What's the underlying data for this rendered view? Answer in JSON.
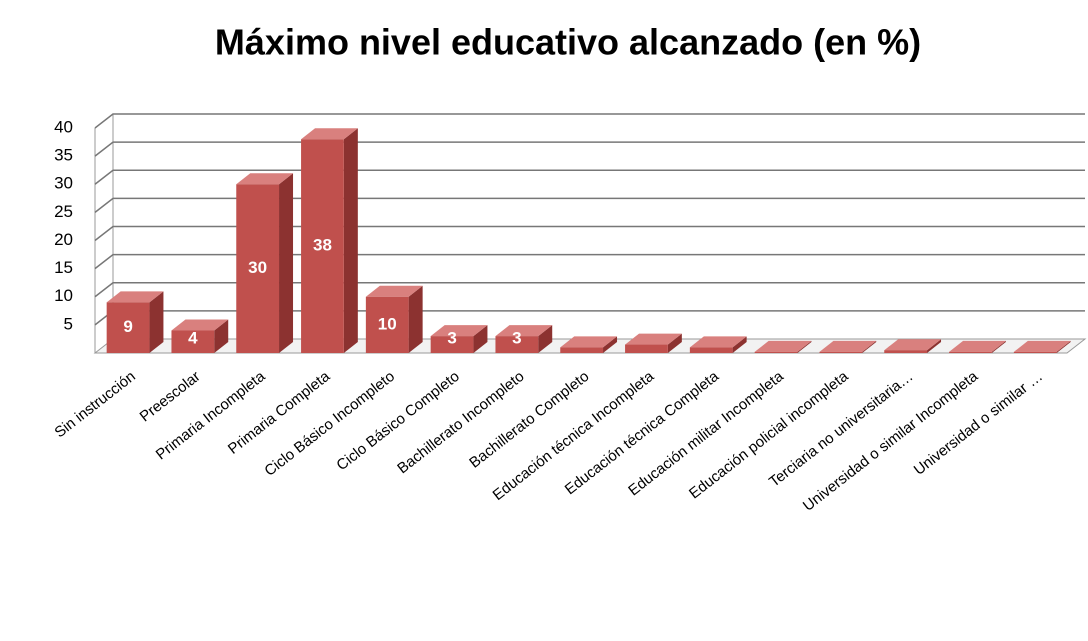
{
  "chart_data": {
    "type": "bar3d",
    "title": "Máximo nivel educativo alcanzado (en %)",
    "categories": [
      "Sin instrucción",
      "Preescolar",
      "Primaria Incompleta",
      "Primaria Completa",
      "Ciclo Básico Incompleto",
      "Ciclo Básico Completo",
      "Bachillerato Incompleto",
      "Bachillerato Completo",
      "Educación técnica Incompleta",
      "Educación técnica Completa",
      "Educación militar Incompleta",
      "Educación policial incompleta",
      "Terciaria no universitaria…",
      "Universidad o similar Incompleta",
      "Universidad o similar …"
    ],
    "values": [
      9,
      4,
      30,
      38,
      10,
      3,
      3,
      1,
      1.5,
      1,
      0.2,
      0.2,
      0.5,
      0.2,
      0.2
    ],
    "value_labels": [
      "9",
      "4",
      "30",
      "38",
      "10",
      "3",
      "3",
      null,
      null,
      null,
      null,
      null,
      null,
      null,
      null
    ],
    "color": "#c0504d",
    "ylim": [
      0,
      40
    ],
    "yticks": [
      5,
      10,
      15,
      20,
      25,
      30,
      35,
      40
    ],
    "grid": true
  }
}
